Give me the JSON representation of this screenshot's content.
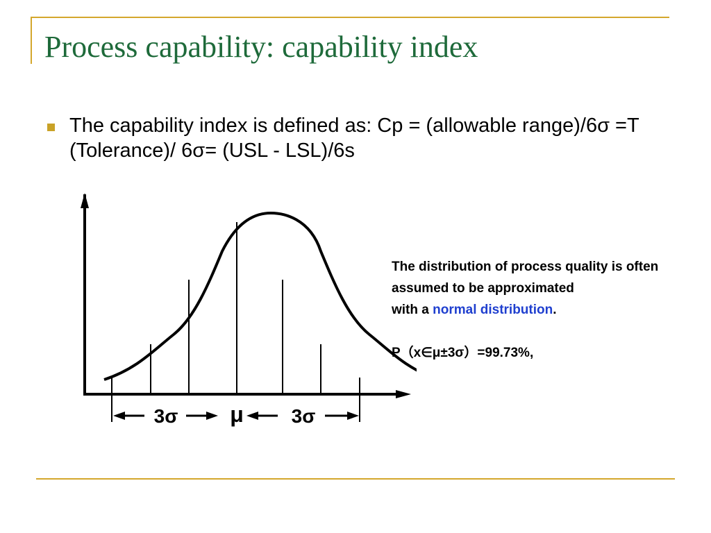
{
  "slide": {
    "title": "Process capability: capability index",
    "bullet": {
      "text": "The capability index is defined as: Cp = (allowable range)/6σ =T (Tolerance)/ 6σ= (USL - LSL)/6s"
    },
    "figure": {
      "left_label": "3σ",
      "center_label": "μ",
      "right_label": "3σ"
    },
    "note": {
      "line1": "The distribution of process quality is often assumed to be approximated",
      "line2_prefix": "with a ",
      "line2_highlight": "normal distribution",
      "line2_suffix": ".",
      "formula": "P（x∈μ±3σ）=99.73%,"
    }
  }
}
